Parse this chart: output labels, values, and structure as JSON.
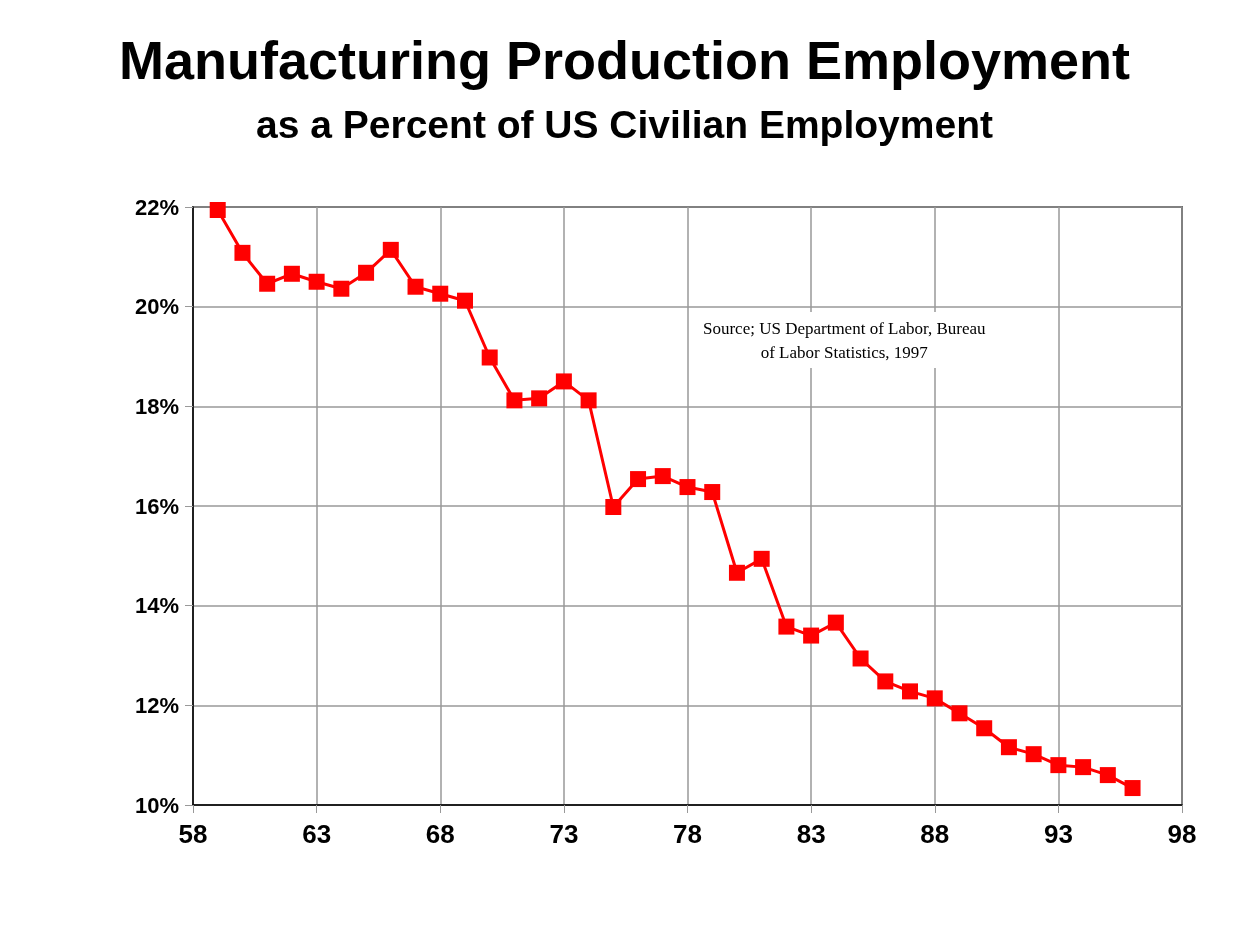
{
  "chart_data": {
    "type": "line",
    "title": "Manufacturing Production Employment",
    "subtitle": "as a Percent of US Civilian Employment",
    "x": [
      59,
      60,
      61,
      62,
      63,
      64,
      65,
      66,
      67,
      68,
      69,
      70,
      71,
      72,
      73,
      74,
      75,
      76,
      77,
      78,
      79,
      80,
      81,
      82,
      83,
      84,
      85,
      86,
      87,
      88,
      89,
      90,
      91,
      92,
      93,
      94,
      95,
      96
    ],
    "series": [
      {
        "color": "#ff0000",
        "values": [
          21.94,
          21.08,
          20.46,
          20.66,
          20.5,
          20.36,
          20.68,
          21.14,
          20.4,
          20.26,
          20.12,
          18.98,
          18.12,
          18.16,
          18.5,
          18.12,
          15.98,
          16.54,
          16.6,
          16.38,
          16.28,
          14.66,
          14.94,
          13.58,
          13.4,
          13.66,
          12.94,
          12.48,
          12.28,
          12.14,
          11.84,
          11.54,
          11.16,
          11.02,
          10.8,
          10.76,
          10.6,
          10.34
        ]
      }
    ],
    "xlim": [
      58,
      98
    ],
    "xticks": [
      58,
      63,
      68,
      73,
      78,
      83,
      88,
      93,
      98
    ],
    "ylim": [
      10,
      22
    ],
    "yticks": [
      {
        "value": 10,
        "label": "10%"
      },
      {
        "value": 12,
        "label": "12%"
      },
      {
        "value": 14,
        "label": "14%"
      },
      {
        "value": 16,
        "label": "16%"
      },
      {
        "value": 18,
        "label": "18%"
      },
      {
        "value": 20,
        "label": "20%"
      },
      {
        "value": 22,
        "label": "22%"
      }
    ],
    "annotations": [
      "Source; US Department of Labor, Bureau\nof Labor Statistics, 1997"
    ],
    "grid": true,
    "marker": "square",
    "line_style": "solid"
  }
}
